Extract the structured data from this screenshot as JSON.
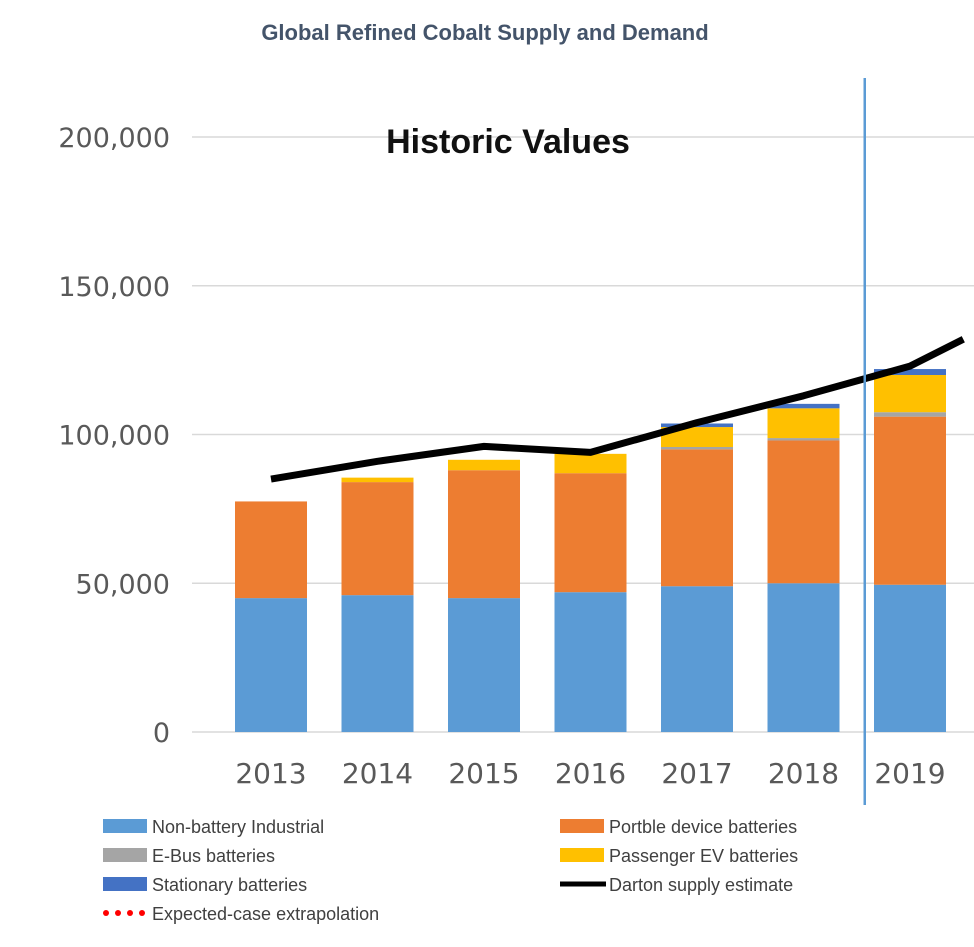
{
  "chart_data": {
    "type": "bar",
    "stacked": true,
    "title": "Global Refined Cobalt Supply and Demand",
    "annotation": "Historic Values",
    "categories": [
      "2013",
      "2014",
      "2015",
      "2016",
      "2017",
      "2018",
      "2019"
    ],
    "ylim": [
      0,
      200000
    ],
    "yticks": [
      0,
      50000,
      100000,
      150000,
      200000
    ],
    "ytick_labels": [
      "0",
      "50,000",
      "100,000",
      "150,000",
      "200,000"
    ],
    "grid": true,
    "legend_position": "bottom",
    "series": [
      {
        "name": "Non-battery Industrial",
        "color": "#5b9bd5",
        "values": [
          45000,
          46000,
          45000,
          47000,
          49000,
          50000,
          49500
        ]
      },
      {
        "name": "Portble device batteries",
        "color": "#ed7d31",
        "values": [
          32500,
          38000,
          43000,
          40000,
          46000,
          48000,
          56500
        ]
      },
      {
        "name": "E-Bus batteries",
        "color": "#a5a5a5",
        "values": [
          0,
          0,
          0,
          0,
          800,
          800,
          1500
        ]
      },
      {
        "name": "Passenger EV batteries",
        "color": "#ffc000",
        "values": [
          0,
          1500,
          3500,
          6500,
          6700,
          10000,
          12500
        ]
      },
      {
        "name": "Stationary batteries",
        "color": "#4472c4",
        "values": [
          0,
          0,
          0,
          0,
          1200,
          1500,
          2000
        ]
      }
    ],
    "line_series": [
      {
        "name": "Darton supply estimate",
        "color": "#000000",
        "x": [
          2013,
          2014,
          2015,
          2016,
          2017,
          2018,
          2019,
          2019.5
        ],
        "values": [
          85000,
          91000,
          96000,
          94000,
          104000,
          113000,
          123000,
          132000
        ]
      }
    ],
    "extra_legend": [
      {
        "name": "Expected-case extrapolation",
        "color": "#ff0000",
        "style": "dotted"
      }
    ],
    "divider_x": 2018.5
  }
}
